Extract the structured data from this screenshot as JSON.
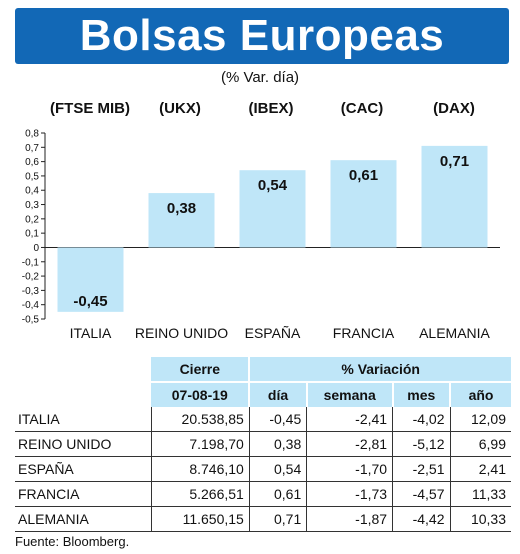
{
  "title": "Bolsas Europeas",
  "subtitle": "(% Var. día)",
  "indices": [
    "(FTSE MIB)",
    "(UKX)",
    "(IBEX)",
    "(CAC)",
    "(DAX)"
  ],
  "chart_data": {
    "type": "bar",
    "categories": [
      "ITALIA",
      "REINO UNIDO",
      "ESPAÑA",
      "FRANCIA",
      "ALEMANIA"
    ],
    "values": [
      -0.45,
      0.38,
      0.54,
      0.61,
      0.71
    ],
    "value_labels": [
      "-0,45",
      "0,38",
      "0,54",
      "0,61",
      "0,71"
    ],
    "ylim": [
      -0.5,
      0.8
    ],
    "yticks": [
      0.8,
      0.7,
      0.6,
      0.5,
      0.4,
      0.3,
      0.2,
      0.1,
      0,
      -0.1,
      -0.2,
      -0.3,
      -0.4,
      -0.5
    ],
    "ytick_labels": [
      "0,8",
      "0,7",
      "0,6",
      "0,5",
      "0,4",
      "0,3",
      "0,2",
      "0,1",
      "0",
      "-0,1",
      "-0,2",
      "-0,3",
      "-0,4",
      "-0,5"
    ],
    "bar_color": "#bfe6f8"
  },
  "table": {
    "header_cierre": "Cierre",
    "header_variacion": "% Variación",
    "date": "07-08-19",
    "col_dia": "día",
    "col_semana": "semana",
    "col_mes": "mes",
    "col_anio": "año",
    "rows": [
      {
        "pais": "ITALIA",
        "cierre": "20.538,85",
        "dia": "-0,45",
        "semana": "-2,41",
        "mes": "-4,02",
        "anio": "12,09"
      },
      {
        "pais": "REINO UNIDO",
        "cierre": "7.198,70",
        "dia": "0,38",
        "semana": "-2,81",
        "mes": "-5,12",
        "anio": "6,99"
      },
      {
        "pais": "ESPAÑA",
        "cierre": "8.746,10",
        "dia": "0,54",
        "semana": "-1,70",
        "mes": "-2,51",
        "anio": "2,41"
      },
      {
        "pais": "FRANCIA",
        "cierre": "5.266,51",
        "dia": "0,61",
        "semana": "-1,73",
        "mes": "-4,57",
        "anio": "11,33"
      },
      {
        "pais": "ALEMANIA",
        "cierre": "11.650,15",
        "dia": "0,71",
        "semana": "-1,87",
        "mes": "-4,42",
        "anio": "10,33"
      }
    ]
  },
  "source": "Fuente: Bloomberg."
}
